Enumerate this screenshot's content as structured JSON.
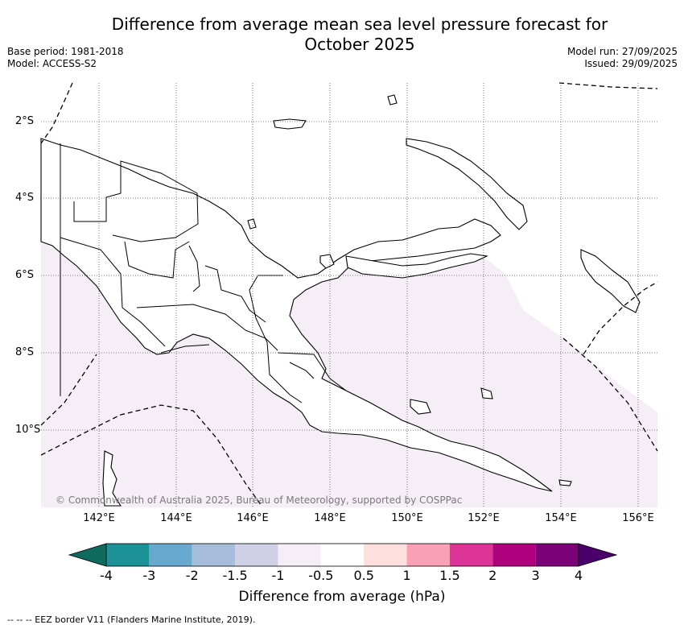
{
  "title_line1": "Difference from average mean sea level pressure forecast for",
  "title_line2": "October 2025",
  "base_period": "Base period: 1981-2018",
  "model": "Model: ACCESS-S2",
  "model_run": "Model run: 27/09/2025",
  "issued": "Issued: 29/09/2025",
  "lat_labels": [
    "2°S",
    "4°S",
    "6°S",
    "8°S",
    "10°S"
  ],
  "lon_labels": [
    "142°E",
    "144°E",
    "146°E",
    "148°E",
    "150°E",
    "152°E",
    "154°E",
    "156°E"
  ],
  "copyright": "© Commonwealth of Australia 2025, Bureau of Meteorology, supported by COSPPac",
  "colorbar": {
    "title": "Difference from average (hPa)",
    "ticks": [
      "-4",
      "-3",
      "-2",
      "-1.5",
      "-1",
      "-0.5",
      "0.5",
      "1",
      "1.5",
      "2",
      "3",
      "4"
    ],
    "colors": [
      "#0f6b5e",
      "#1c9196",
      "#67a9cf",
      "#a6bddb",
      "#d0d1e6",
      "#f5eef6",
      "#ffffff",
      "#fde0dd",
      "#fa9fb5",
      "#dd3497",
      "#ae017e",
      "#7a0177",
      "#49006a"
    ]
  },
  "anomaly_fill": "#f5eef6",
  "footnote": "-- -- -- EEZ border V11 (Flanders Marine Institute, 2019)."
}
